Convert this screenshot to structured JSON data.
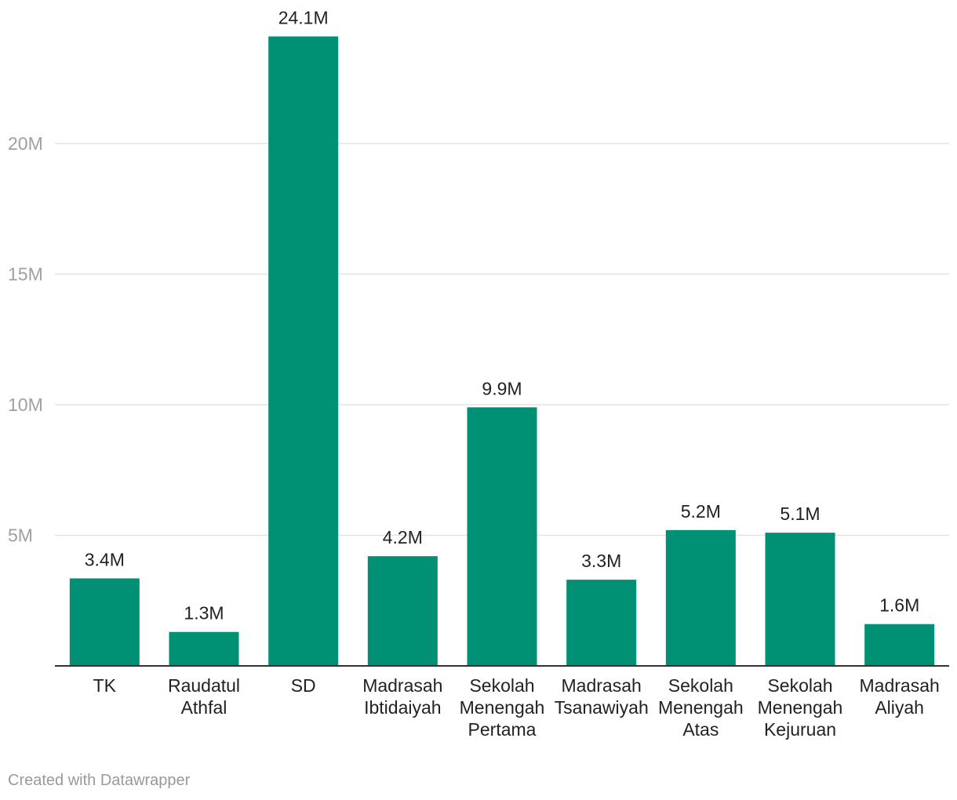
{
  "chart_data": {
    "type": "bar",
    "categories": [
      "TK",
      "Raudatul Athfal",
      "SD",
      "Madrasah Ibtidaiyah",
      "Sekolah Menengah Pertama",
      "Madrasah Tsanawiyah",
      "Sekolah Menengah Atas",
      "Sekolah Menengah Kejuruan",
      "Madrasah Aliyah"
    ],
    "category_lines": [
      [
        "TK"
      ],
      [
        "Raudatul",
        "Athfal"
      ],
      [
        "SD"
      ],
      [
        "Madrasah",
        "Ibtidaiyah"
      ],
      [
        "Sekolah",
        "Menengah",
        "Pertama"
      ],
      [
        "Madrasah",
        "Tsanawiyah"
      ],
      [
        "Sekolah",
        "Menengah",
        "Atas"
      ],
      [
        "Sekolah",
        "Menengah",
        "Kejuruan"
      ],
      [
        "Madrasah",
        "Aliyah"
      ]
    ],
    "values": [
      3.35,
      1.3,
      24.1,
      4.2,
      9.9,
      3.3,
      5.2,
      5.1,
      1.6
    ],
    "value_labels": [
      "3.4M",
      "1.3M",
      "24.1M",
      "4.2M",
      "9.9M",
      "3.3M",
      "5.2M",
      "5.1M",
      "1.6M"
    ],
    "yticks": [
      5,
      10,
      15,
      20
    ],
    "ytick_labels": [
      "5M",
      "10M",
      "15M",
      "20M"
    ],
    "ylim": [
      0,
      25
    ],
    "grid": true,
    "bar_color": "#009174",
    "title": "",
    "xlabel": "",
    "ylabel": ""
  },
  "footer": {
    "credit": "Created with Datawrapper"
  }
}
